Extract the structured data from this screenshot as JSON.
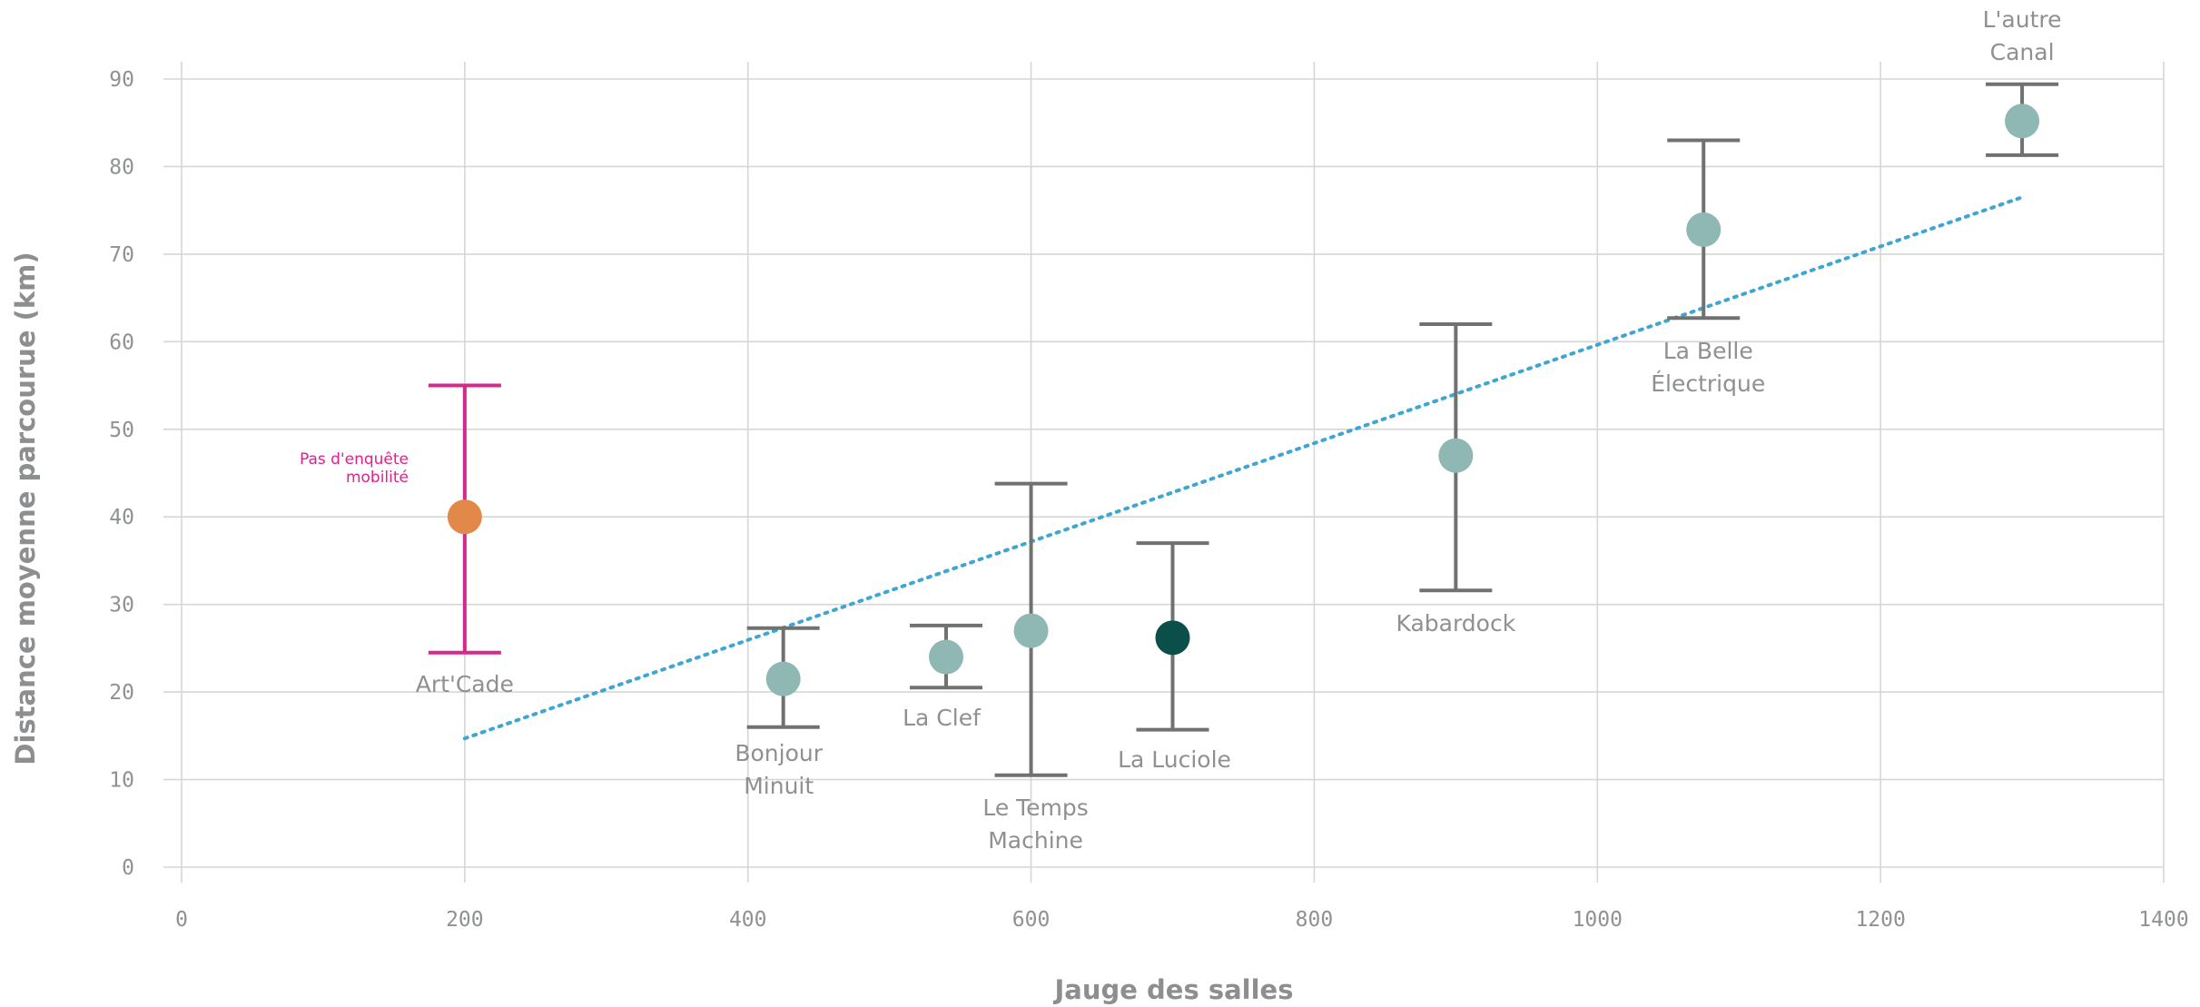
{
  "chart_data": {
    "type": "scatter",
    "xlabel": "Jauge des salles",
    "ylabel": "Distance moyenne parcourue (km)",
    "xlim": [
      0,
      1400
    ],
    "ylim": [
      0,
      90
    ],
    "xticks": [
      0,
      200,
      400,
      600,
      800,
      1000,
      1200,
      1400
    ],
    "yticks": [
      0,
      10,
      20,
      30,
      40,
      50,
      60,
      70,
      80,
      90
    ],
    "grid": true,
    "points": [
      {
        "label": "Art'Cade",
        "x": 200,
        "y": 40,
        "err_low": 24.5,
        "err_high": 55,
        "color": "#e2894a",
        "error_color": "#d6288f"
      },
      {
        "label": "Bonjour Minuit",
        "x": 425,
        "y": 21.5,
        "err_low": 16,
        "err_high": 27.3,
        "color": "#8fb8b5",
        "error_color": "#707272"
      },
      {
        "label": "La Clef",
        "x": 540,
        "y": 24,
        "err_low": 20.5,
        "err_high": 27.6,
        "color": "#8fb8b5",
        "error_color": "#707272"
      },
      {
        "label": "Le Temps Machine",
        "x": 600,
        "y": 27,
        "err_low": 10.5,
        "err_high": 43.8,
        "color": "#8fb8b5",
        "error_color": "#707272"
      },
      {
        "label": "La Luciole",
        "x": 700,
        "y": 26.2,
        "err_low": 15.7,
        "err_high": 37,
        "color": "#0b4f4b",
        "error_color": "#707272"
      },
      {
        "label": "Kabardock",
        "x": 900,
        "y": 47,
        "err_low": 31.6,
        "err_high": 62,
        "color": "#8fb8b5",
        "error_color": "#707272"
      },
      {
        "label": "La Belle Électrique",
        "x": 1075,
        "y": 72.8,
        "err_low": 62.7,
        "err_high": 83,
        "color": "#8fb8b5",
        "error_color": "#707272"
      },
      {
        "label": "L'autre Canal",
        "x": 1300,
        "y": 85.2,
        "err_low": 81.3,
        "err_high": 89.4,
        "color": "#8fb8b5",
        "error_color": "#707272"
      }
    ],
    "trendline": {
      "style": "dotted",
      "color": "#3ea6d3",
      "x": [
        200,
        1300
      ],
      "y": [
        14.7,
        76.5
      ]
    },
    "annotations": [
      {
        "text": "Pas d'enquête mobilité",
        "target": "Art'Cade",
        "color": "#e0218a"
      }
    ]
  }
}
